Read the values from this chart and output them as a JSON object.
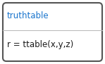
{
  "title_text": "truthtable",
  "body_text": "r = ttable(x,y,z)",
  "title_color": "#1874CD",
  "body_color": "#1a1a1a",
  "bg_color": "#ffffff",
  "border_color": "#555555",
  "divider_color": "#bbbbbb",
  "title_fontsize": 8.5,
  "body_fontsize": 8.5,
  "fig_width": 1.49,
  "fig_height": 0.91
}
